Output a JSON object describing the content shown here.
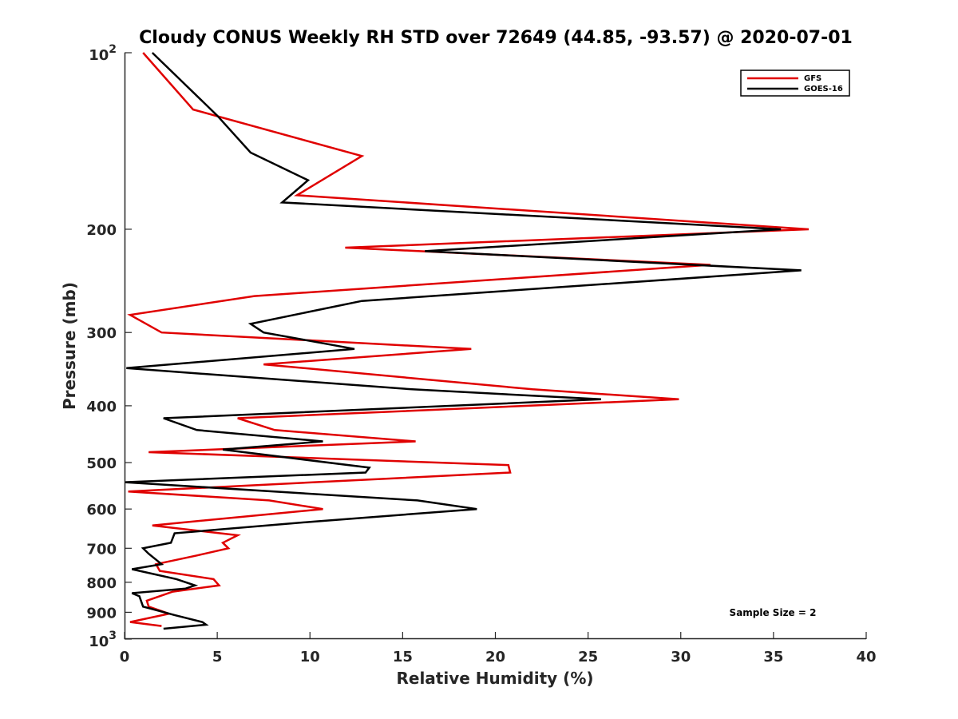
{
  "colors": {
    "GFS": "#e00000",
    "GOES-16": "#000000",
    "axis": "#262626"
  },
  "chart_data": {
    "type": "line",
    "title": "Cloudy CONUS Weekly RH STD over 72649 (44.85, -93.57) @ 2020-07-01",
    "xlabel": "Relative Humidity (%)",
    "ylabel": "Pressure (mb)",
    "xlim": [
      0,
      40
    ],
    "ylim": [
      100,
      1000
    ],
    "y_scale": "log",
    "y_direction": "reversed",
    "x_ticks": [
      "0",
      "5",
      "10",
      "15",
      "20",
      "25",
      "30",
      "35",
      "40"
    ],
    "y_ticks": [
      {
        "value": 100,
        "base": "10",
        "exp": "2"
      },
      {
        "value": 200,
        "label": "200"
      },
      {
        "value": 300,
        "label": "300"
      },
      {
        "value": 400,
        "label": "400"
      },
      {
        "value": 500,
        "label": "500"
      },
      {
        "value": 600,
        "label": "600"
      },
      {
        "value": 700,
        "label": "700"
      },
      {
        "value": 800,
        "label": "800"
      },
      {
        "value": 900,
        "label": "900"
      },
      {
        "value": 1000,
        "base": "10",
        "exp": "3"
      }
    ],
    "grid": false,
    "legend": "top-right",
    "annotation": "Sample Size = 2",
    "series": [
      {
        "name": "GFS",
        "points": [
          [
            1.0,
            100
          ],
          [
            3.7,
            125
          ],
          [
            12.8,
            150
          ],
          [
            9.3,
            175
          ],
          [
            36.9,
            200
          ],
          [
            11.9,
            215
          ],
          [
            31.6,
            230
          ],
          [
            7.0,
            260
          ],
          [
            0.3,
            280
          ],
          [
            2.0,
            300
          ],
          [
            18.7,
            320
          ],
          [
            7.5,
            340
          ],
          [
            22.0,
            375
          ],
          [
            29.9,
            390
          ],
          [
            6.1,
            420
          ],
          [
            8.1,
            440
          ],
          [
            15.7,
            460
          ],
          [
            1.3,
            480
          ],
          [
            20.7,
            505
          ],
          [
            20.8,
            520
          ],
          [
            0.2,
            560
          ],
          [
            7.8,
            580
          ],
          [
            10.7,
            600
          ],
          [
            1.5,
            640
          ],
          [
            6.1,
            665
          ],
          [
            5.3,
            685
          ],
          [
            5.6,
            700
          ],
          [
            3.9,
            720
          ],
          [
            1.7,
            745
          ],
          [
            1.9,
            765
          ],
          [
            4.8,
            790
          ],
          [
            5.1,
            810
          ],
          [
            2.6,
            830
          ],
          [
            1.2,
            860
          ],
          [
            1.3,
            880
          ],
          [
            2.4,
            905
          ],
          [
            0.3,
            935
          ],
          [
            2.0,
            950
          ]
        ]
      },
      {
        "name": "GOES-16",
        "points": [
          [
            1.5,
            100
          ],
          [
            5.0,
            128
          ],
          [
            6.8,
            148
          ],
          [
            9.9,
            165
          ],
          [
            8.5,
            180
          ],
          [
            35.4,
            200
          ],
          [
            16.2,
            218
          ],
          [
            36.5,
            235
          ],
          [
            12.8,
            265
          ],
          [
            6.8,
            290
          ],
          [
            7.5,
            300
          ],
          [
            12.4,
            320
          ],
          [
            0.1,
            345
          ],
          [
            15.5,
            375
          ],
          [
            25.7,
            390
          ],
          [
            2.1,
            420
          ],
          [
            3.9,
            440
          ],
          [
            10.7,
            460
          ],
          [
            5.3,
            475
          ],
          [
            13.2,
            510
          ],
          [
            13.0,
            520
          ],
          [
            0.0,
            540
          ],
          [
            15.8,
            580
          ],
          [
            19.0,
            600
          ],
          [
            10.3,
            630
          ],
          [
            2.7,
            660
          ],
          [
            2.5,
            685
          ],
          [
            1.0,
            700
          ],
          [
            1.3,
            715
          ],
          [
            2.0,
            745
          ],
          [
            0.4,
            760
          ],
          [
            2.8,
            790
          ],
          [
            3.8,
            810
          ],
          [
            3.3,
            820
          ],
          [
            0.4,
            835
          ],
          [
            0.8,
            845
          ],
          [
            1.0,
            880
          ],
          [
            2.7,
            910
          ],
          [
            4.2,
            935
          ],
          [
            4.4,
            945
          ],
          [
            2.1,
            960
          ]
        ]
      }
    ]
  }
}
